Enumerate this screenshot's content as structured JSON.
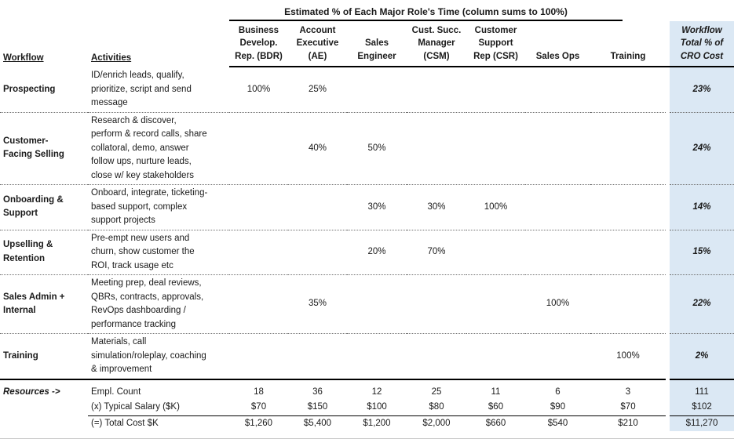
{
  "title": "Estimated % of Each Major Role's Time (column sums to 100%)",
  "colors": {
    "highlight_bg": "#dbe8f4",
    "line": "#000000",
    "dotted_separator": "#707070"
  },
  "header": {
    "workflow": "Workflow",
    "activities": "Activities",
    "roles": [
      "Business\nDevelop.\nRep. (BDR)",
      "Account\nExecutive\n(AE)",
      "Sales\nEngineer",
      "Cust. Succ.\nManager\n(CSM)",
      "Customer\nSupport\nRep (CSR)",
      "Sales Ops",
      "Training"
    ],
    "total": "Workflow\nTotal % of\nCRO Cost"
  },
  "rows": [
    {
      "workflow": "Prospecting",
      "activities": "ID/enrich leads, qualify,\nprioritize, script and send\nmessage",
      "cells": [
        "100%",
        "25%",
        "",
        "",
        "",
        "",
        ""
      ],
      "total": "23%"
    },
    {
      "workflow": "Customer-\nFacing Selling",
      "activities": "Research & discover,\nperform & record calls, share\ncollatoral, demo, answer\nfollow ups, nurture leads,\nclose w/ key stakeholders",
      "cells": [
        "",
        "40%",
        "50%",
        "",
        "",
        "",
        ""
      ],
      "total": "24%"
    },
    {
      "workflow": "Onboarding &\nSupport",
      "activities": "Onboard, integrate, ticketing-\nbased support, complex\nsupport projects",
      "cells": [
        "",
        "",
        "30%",
        "30%",
        "100%",
        "",
        ""
      ],
      "total": "14%"
    },
    {
      "workflow": "Upselling &\nRetention",
      "activities": "Pre-empt new users and\nchurn, show customer the\nROI, track usage etc",
      "cells": [
        "",
        "",
        "20%",
        "70%",
        "",
        "",
        ""
      ],
      "total": "15%"
    },
    {
      "workflow": "Sales Admin +\nInternal",
      "activities": "Meeting prep, deal reviews,\nQBRs, contracts, approvals,\nRevOps dashboarding /\nperformance tracking",
      "cells": [
        "",
        "35%",
        "",
        "",
        "",
        "100%",
        ""
      ],
      "total": "22%"
    },
    {
      "workflow": "Training",
      "activities": "Materials, call\nsimulation/roleplay, coaching\n& improvement",
      "cells": [
        "",
        "",
        "",
        "",
        "",
        "",
        "100%"
      ],
      "total": "2%"
    }
  ],
  "resources": {
    "label": "Resources ->",
    "rows": [
      {
        "label": "Empl. Count",
        "cells": [
          "18",
          "36",
          "12",
          "25",
          "11",
          "6",
          "3"
        ],
        "total": "111"
      },
      {
        "label": "(x) Typical Salary ($K)",
        "cells": [
          "$70",
          "$150",
          "$100",
          "$80",
          "$60",
          "$90",
          "$70"
        ],
        "total": "$102"
      },
      {
        "label": "(=) Total Cost $K",
        "cells": [
          "$1,260",
          "$5,400",
          "$1,200",
          "$2,000",
          "$660",
          "$540",
          "$210"
        ],
        "total": "$11,270"
      }
    ]
  }
}
